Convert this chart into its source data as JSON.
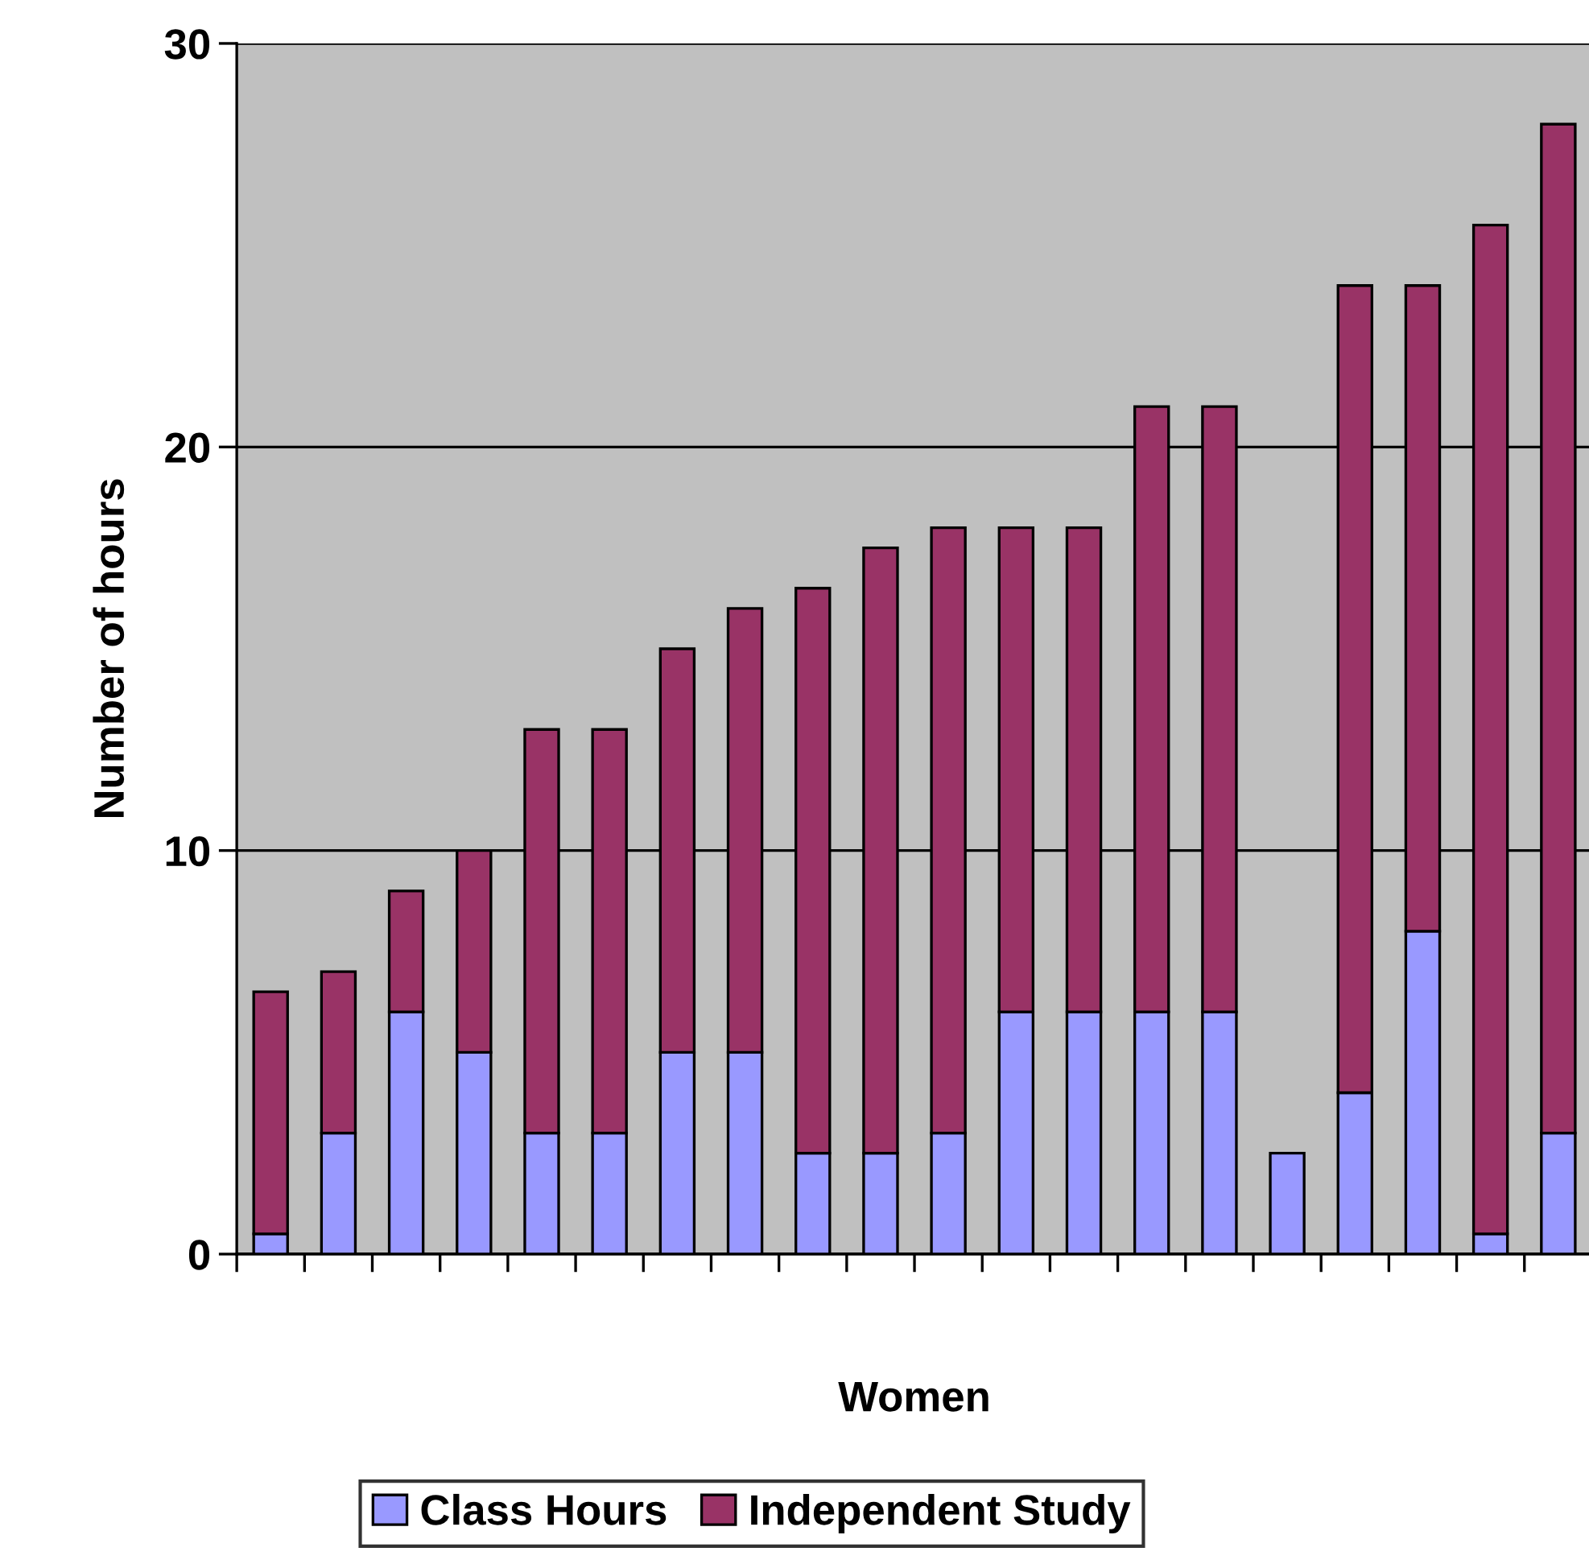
{
  "chart_data": {
    "type": "bar",
    "stacked": true,
    "xlabel": "Women",
    "ylabel": "Number of hours",
    "categories": [
      null,
      null,
      null,
      null,
      null,
      null,
      null,
      null,
      null,
      null,
      null,
      null,
      null,
      null,
      null,
      null,
      null,
      null,
      null,
      null
    ],
    "series": [
      {
        "name": "Class Hours",
        "color": "#9999ff",
        "values": [
          0.5,
          3,
          6,
          5,
          3,
          3,
          5,
          5,
          2.5,
          2.5,
          3,
          6,
          6,
          6,
          6,
          2.5,
          4,
          8,
          0.5,
          3
        ]
      },
      {
        "name": "Independent Study",
        "color": "#993366",
        "values": [
          6,
          4,
          3,
          5,
          10,
          10,
          10,
          11,
          14,
          15,
          15,
          12,
          12,
          15,
          15,
          null,
          20,
          16,
          25,
          25
        ]
      }
    ],
    "ylim": [
      0,
      30
    ],
    "yticks": [
      0,
      10,
      20,
      30
    ],
    "grid": "y",
    "legend": "bottom"
  }
}
